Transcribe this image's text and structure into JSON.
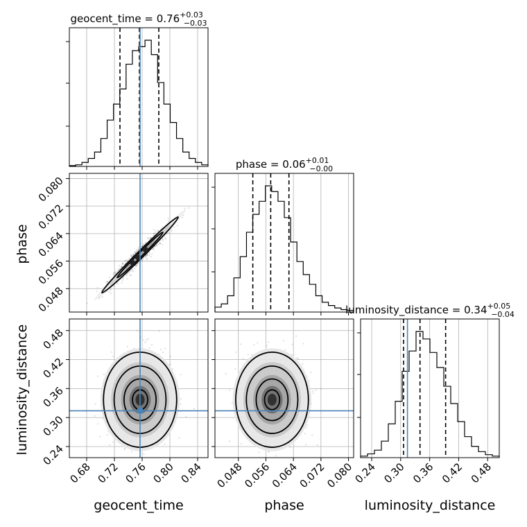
{
  "chart_data": {
    "type": "corner",
    "parameters": [
      "geocent_time",
      "phase",
      "luminosity_distance"
    ],
    "axis_labels": {
      "geocent_time": "geocent_time",
      "phase": "phase",
      "luminosity_distance": "luminosity_distance"
    },
    "ranges": {
      "geocent_time": [
        0.655,
        0.855
      ],
      "phase": [
        0.0412,
        0.0815
      ],
      "luminosity_distance": [
        0.217,
        0.504
      ]
    },
    "ticks": {
      "geocent_time": [
        "0.68",
        "0.72",
        "0.76",
        "0.80",
        "0.84"
      ],
      "phase": [
        "0.048",
        "0.056",
        "0.064",
        "0.072",
        "0.080"
      ],
      "luminosity_distance": [
        "0.24",
        "0.30",
        "0.36",
        "0.42",
        "0.48"
      ]
    },
    "truths": {
      "geocent_time": 0.757,
      "phase": null,
      "luminosity_distance": 0.314
    },
    "titles": [
      {
        "param": "geocent_time",
        "prefix": "geocent_time = 0.76",
        "plus": "+0.03",
        "minus": "−0.03"
      },
      {
        "param": "phase",
        "prefix": "phase = 0.06",
        "plus": "+0.01",
        "minus": "−0.00"
      },
      {
        "param": "luminosity_distance",
        "prefix": "luminosity_distance = 0.34",
        "plus": "+0.05",
        "minus": "−0.04"
      }
    ],
    "quantiles": {
      "geocent_time": [
        0.728,
        0.756,
        0.784
      ],
      "phase": [
        0.0522,
        0.0574,
        0.0627
      ],
      "luminosity_distance": [
        0.306,
        0.34,
        0.393
      ]
    },
    "histograms": {
      "geocent_time": {
        "edges_range": [
          0.655,
          0.855
        ],
        "counts": [
          1,
          2,
          5,
          10,
          18,
          35,
          58,
          78,
          97,
          128,
          145,
          150,
          158,
          140,
          105,
          78,
          55,
          35,
          18,
          10,
          5,
          2
        ]
      },
      "phase": {
        "edges_range": [
          0.0412,
          0.0815
        ],
        "counts": [
          6,
          10,
          20,
          42,
          68,
          98,
          120,
          136,
          155,
          148,
          136,
          116,
          86,
          62,
          46,
          34,
          20,
          12,
          8,
          5,
          3,
          2
        ]
      },
      "luminosity_distance": {
        "edges_range": [
          0.217,
          0.504
        ],
        "counts": [
          2,
          5,
          10,
          22,
          45,
          75,
          115,
          142,
          168,
          158,
          140,
          120,
          95,
          72,
          48,
          28,
          15,
          8,
          4,
          2
        ]
      }
    },
    "correlations": {
      "phase_vs_geocent_time": 0.97,
      "luminosity_distance_vs_geocent_time": 0.0,
      "luminosity_distance_vs_phase": 0.0
    },
    "grid": true
  }
}
